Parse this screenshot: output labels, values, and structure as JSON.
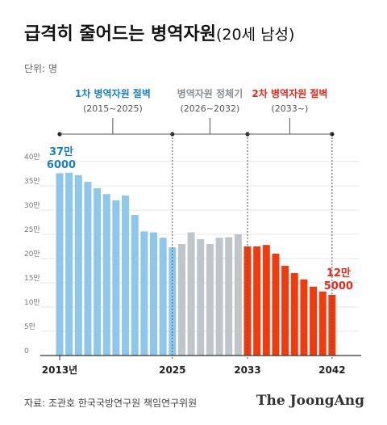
{
  "title": "급격히 줄어드는 병역자원",
  "title_sub": "(20세 남성)",
  "unit": "단위: 명",
  "source": "자료: 조관호 한국국방연구원 책임연구위원",
  "brand": "The JoongAng",
  "periods": [
    {
      "label": "1차 병역자원 절벽",
      "range": "(2015~2025)",
      "color": "#1b7fc4"
    },
    {
      "label": "병역자원 정체기",
      "range": "(2026~2032)",
      "color": "#8a8f94"
    },
    {
      "label": "2차 병역자원 절벽",
      "range": "(2033~)",
      "color": "#e8281c"
    }
  ],
  "callouts": {
    "start": {
      "line1": "37만",
      "line2": "6000",
      "color": "#1b7fc4"
    },
    "end": {
      "line1": "12만",
      "line2": "5000",
      "color": "#e8281c"
    }
  },
  "colors": {
    "blue": "#8ec6ec",
    "gray": "#bec6cc",
    "red": "#f23a0f"
  },
  "chart_data": {
    "type": "bar",
    "categories": [
      2013,
      2014,
      2015,
      2016,
      2017,
      2018,
      2019,
      2020,
      2021,
      2022,
      2023,
      2024,
      2025,
      2026,
      2027,
      2028,
      2029,
      2030,
      2031,
      2032,
      2033,
      2034,
      2035,
      2036,
      2037,
      2038,
      2039,
      2040,
      2041,
      2042
    ],
    "x_tick_labels": [
      "2013년",
      "2025",
      "2033",
      "2042"
    ],
    "values": [
      376000,
      377000,
      372000,
      358000,
      345000,
      333000,
      320000,
      330000,
      290000,
      256000,
      254000,
      243000,
      223000,
      230000,
      254000,
      240000,
      230000,
      243000,
      244000,
      250000,
      225000,
      225000,
      228000,
      210000,
      185000,
      170000,
      157000,
      142000,
      132000,
      125000
    ],
    "series_colors": {
      "blue": [
        2013,
        2025
      ],
      "gray": [
        2026,
        2032
      ],
      "red": [
        2033,
        2042
      ]
    },
    "y_ticks": [
      "0",
      "5만",
      "10만",
      "15만",
      "20만",
      "25만",
      "30만",
      "35만",
      "40만"
    ],
    "ylim": [
      0,
      420000
    ]
  }
}
